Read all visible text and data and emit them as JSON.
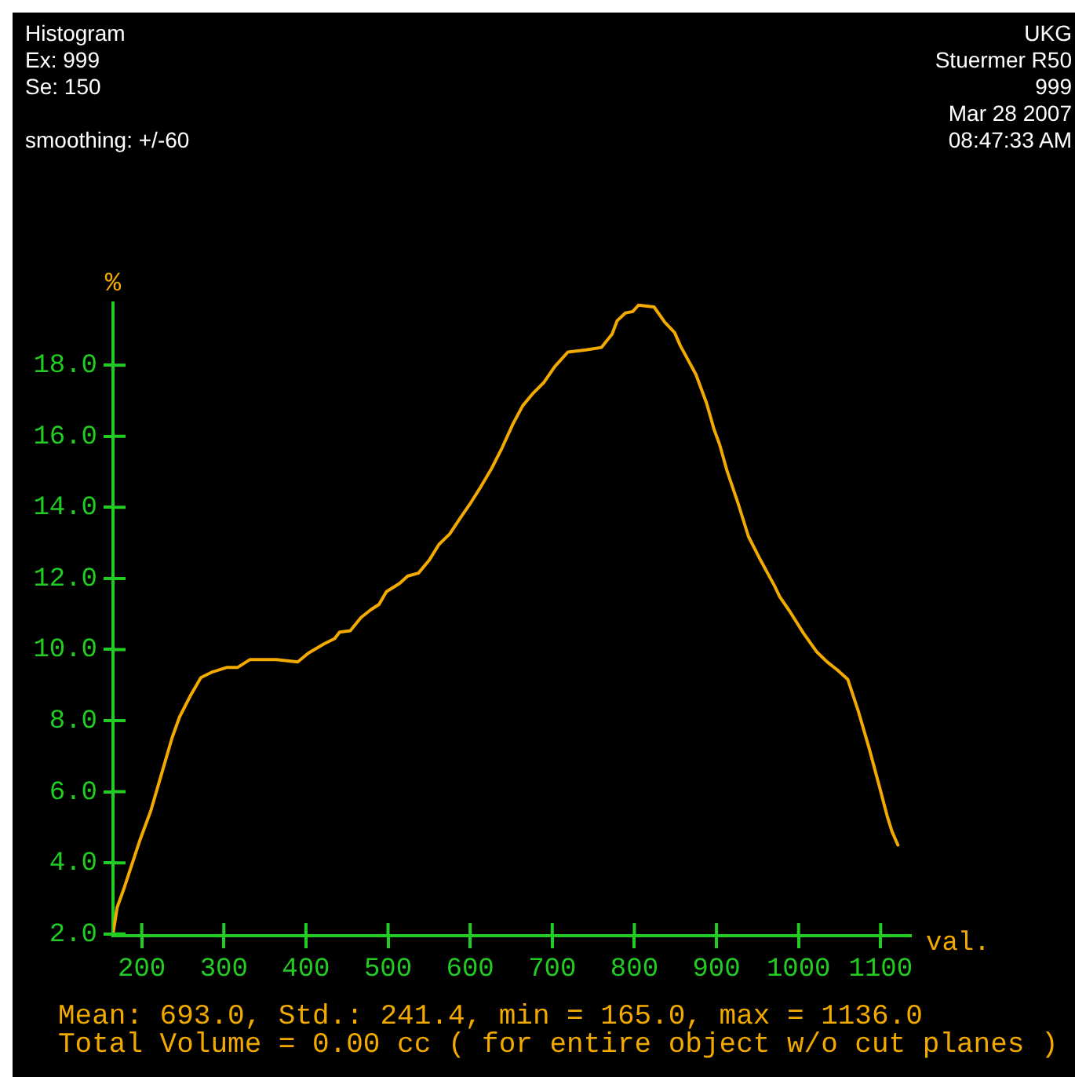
{
  "chart_data": {
    "type": "line",
    "title": "Histogram",
    "xlabel": "val.",
    "ylabel": "%",
    "annotations": [
      "Ex: 999",
      "Se: 150",
      "smoothing: +/-60",
      "UKG",
      "Stuermer R50",
      "999",
      "Mar 28 2007",
      "08:47:33 AM",
      "Mean: 693.0, Std.: 241.4, min = 165.0, max = 1136.0",
      "Total Volume = 0.00 cc ( for entire object w/o cut planes )"
    ],
    "x": [
      165,
      170,
      179,
      198,
      211,
      224,
      237,
      246,
      259,
      272,
      285,
      304,
      317,
      332,
      364,
      390,
      403,
      422,
      435,
      441,
      454,
      467,
      479,
      489,
      498,
      514,
      524,
      537,
      550,
      562,
      575,
      588,
      601,
      613,
      626,
      639,
      652,
      664,
      677,
      690,
      703,
      719,
      741,
      760,
      773,
      779,
      789,
      798,
      805,
      824,
      837,
      849,
      856,
      875,
      888,
      897,
      904,
      913,
      926,
      939,
      952,
      971,
      977,
      990,
      1006,
      1022,
      1035,
      1047,
      1060,
      1073,
      1086,
      1098,
      1108,
      1114,
      1121
    ],
    "series": [
      {
        "color": "#f2a900",
        "values": [
          2.0,
          2.74,
          3.32,
          4.65,
          5.46,
          6.49,
          7.52,
          8.1,
          8.69,
          9.21,
          9.36,
          9.5,
          9.5,
          9.72,
          9.72,
          9.65,
          9.9,
          10.16,
          10.31,
          10.49,
          10.53,
          10.9,
          11.12,
          11.27,
          11.63,
          11.86,
          12.07,
          12.15,
          12.51,
          12.96,
          13.25,
          13.7,
          14.14,
          14.58,
          15.09,
          15.68,
          16.34,
          16.86,
          17.22,
          17.52,
          17.96,
          18.37,
          18.43,
          18.5,
          18.88,
          19.25,
          19.47,
          19.51,
          19.69,
          19.64,
          19.21,
          18.92,
          18.55,
          17.74,
          16.93,
          16.2,
          15.76,
          15.02,
          14.14,
          13.18,
          12.59,
          11.78,
          11.49,
          11.05,
          10.46,
          9.94,
          9.65,
          9.43,
          9.16,
          8.25,
          7.22,
          6.19,
          5.31,
          4.87,
          4.5
        ]
      }
    ],
    "xlim": [
      165,
      1136
    ],
    "ylim": [
      1.95,
      19.75
    ],
    "xticks": [
      200,
      300,
      400,
      500,
      600,
      700,
      800,
      900,
      1000,
      1100
    ],
    "yticks": [
      {
        "value": 2,
        "label": "2.0"
      },
      {
        "value": 4,
        "label": "4.0"
      },
      {
        "value": 6,
        "label": "6.0"
      },
      {
        "value": 8,
        "label": "8.0"
      },
      {
        "value": 10,
        "label": "10.0"
      },
      {
        "value": 12,
        "label": "12.0"
      },
      {
        "value": 14,
        "label": "14.0"
      },
      {
        "value": 16,
        "label": "16.0"
      },
      {
        "value": 18,
        "label": "18.0"
      }
    ],
    "grid": false,
    "legend": false,
    "marker": "none",
    "line_style": "solid"
  }
}
